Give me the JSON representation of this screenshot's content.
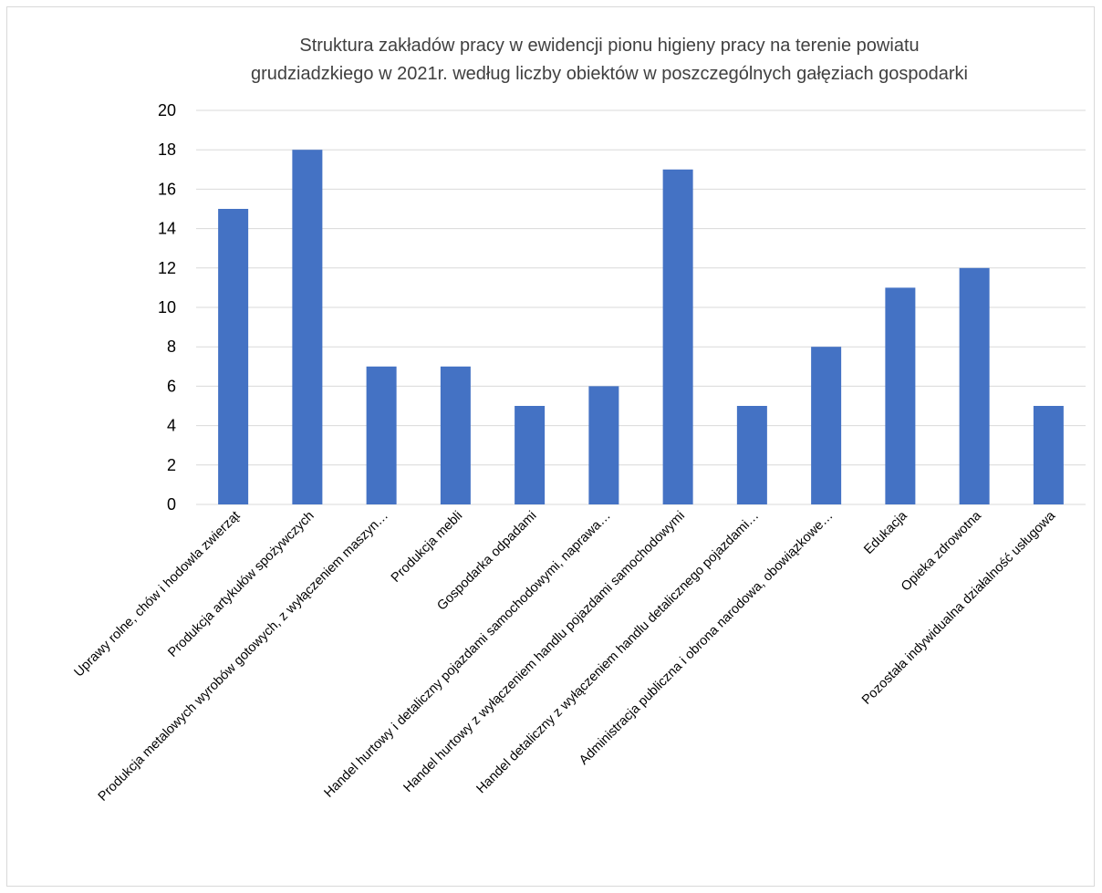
{
  "chart_data": {
    "type": "bar",
    "title": "Struktura zakładów pracy w ewidencji pionu higieny pracy na terenie powiatu grudziadzkiego w 2021r. według liczby obiektów w poszczególnych gałęziach gospodarki",
    "title_lines": [
      "Struktura zakładów pracy w ewidencji pionu higieny pracy na terenie powiatu",
      "grudziadzkiego w 2021r. według liczby obiektów w poszczególnych gałęziach gospodarki"
    ],
    "categories": [
      "Uprawy rolne, chów i hodowla zwierząt",
      "Produkcja artykułów spożywczych",
      "Produkcja metalowych wyrobów gotowych, z wyłączeniem maszyn…",
      "Produkcja mebli",
      "Gospodarka odpadami",
      "Handel hurtowy i detaliczny pojazdami samochodowymi, naprawa…",
      "Handel hurtowy z wyłączeniem handlu pojazdami samochodowymi",
      "Handel detaliczny z wyłączeniem handlu detalicznego pojazdami…",
      "Administracja publiczna i obrona narodowa, obowiązkowe…",
      "Edukacja",
      "Opieka zdrowotna",
      "Pozostała indywidualna działalność usługowa"
    ],
    "values": [
      15,
      18,
      7,
      7,
      5,
      6,
      17,
      5,
      8,
      11,
      12,
      5
    ],
    "xlabel": "",
    "ylabel": "",
    "ylim": [
      0,
      20
    ],
    "yticks": [
      0,
      2,
      4,
      6,
      8,
      10,
      12,
      14,
      16,
      18,
      20
    ],
    "grid": true,
    "legend": "none",
    "bar_color": "#4472c4",
    "grid_color": "#d9d9d9"
  }
}
